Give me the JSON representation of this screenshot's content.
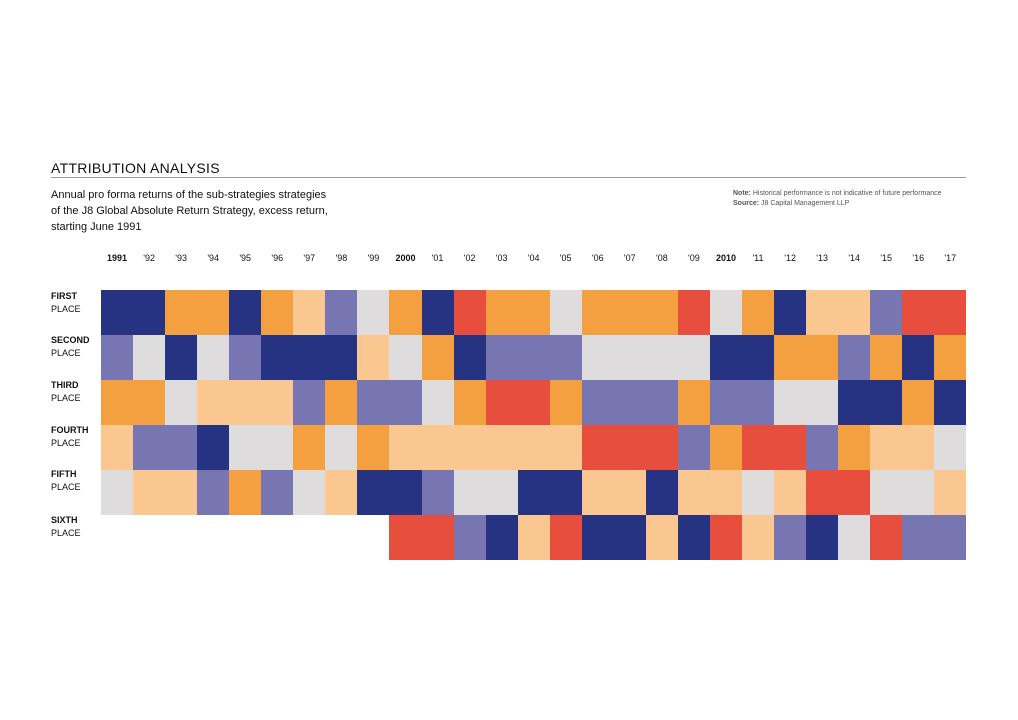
{
  "header": {
    "title": "ATTRIBUTION ANALYSIS",
    "subtitle_lines": [
      "Annual pro forma returns of the sub-strategies strategies",
      "of the J8 Global Absolute Return Strategy, excess return,",
      "starting June 1991"
    ],
    "note_label": "Note:",
    "note_text": "Historical performance is not indicative of future performance",
    "source_label": "Source:",
    "source_text": "J8 Capital Management LLP"
  },
  "chart_data": {
    "type": "heatmap",
    "title": "ATTRIBUTION ANALYSIS",
    "x_tick_labels": [
      "1991",
      "'92",
      "'93",
      "'94",
      "'95",
      "'96",
      "'97",
      "'98",
      "'99",
      "2000",
      "'01",
      "'02",
      "'03",
      "'04",
      "'05",
      "'06",
      "'07",
      "'08",
      "'09",
      "2010",
      "'11",
      "'12",
      "'13",
      "'14",
      "'15",
      "'16",
      "'17"
    ],
    "bold_ticks": [
      "1991",
      "2000",
      "2010"
    ],
    "rows": [
      {
        "label_1": "FIRST",
        "label_2": "PLACE"
      },
      {
        "label_1": "SECOND",
        "label_2": "PLACE"
      },
      {
        "label_1": "THIRD",
        "label_2": "PLACE"
      },
      {
        "label_1": "FOURTH",
        "label_2": "PLACE"
      },
      {
        "label_1": "FIFTH",
        "label_2": "PLACE"
      },
      {
        "label_1": "SIXTH",
        "label_2": "PLACE"
      }
    ],
    "strategy_colors": {
      "A": "#263282",
      "B": "#f5a040",
      "C": "#fac791",
      "D": "#7776b2",
      "E": "#dfdcde",
      "F": "#e84e3e"
    },
    "cells": [
      [
        "A",
        "A",
        "B",
        "B",
        "A",
        "B",
        "C",
        "D",
        "E",
        "B",
        "A",
        "F",
        "B",
        "B",
        "E",
        "B",
        "B",
        "B",
        "F",
        "E",
        "B",
        "A",
        "C",
        "C",
        "D",
        "F",
        "F"
      ],
      [
        "D",
        "E",
        "A",
        "E",
        "D",
        "A",
        "A",
        "A",
        "C",
        "E",
        "B",
        "A",
        "D",
        "D",
        "D",
        "E",
        "E",
        "E",
        "E",
        "A",
        "A",
        "B",
        "B",
        "D",
        "B",
        "A",
        "B"
      ],
      [
        "B",
        "B",
        "E",
        "C",
        "C",
        "C",
        "D",
        "B",
        "D",
        "D",
        "E",
        "B",
        "F",
        "F",
        "B",
        "D",
        "D",
        "D",
        "B",
        "D",
        "D",
        "E",
        "E",
        "A",
        "A",
        "B",
        "A"
      ],
      [
        "C",
        "D",
        "D",
        "A",
        "E",
        "E",
        "B",
        "E",
        "B",
        "C",
        "C",
        "C",
        "C",
        "C",
        "C",
        "F",
        "F",
        "F",
        "D",
        "B",
        "F",
        "F",
        "D",
        "B",
        "C",
        "C",
        "E"
      ],
      [
        "E",
        "C",
        "C",
        "D",
        "B",
        "D",
        "E",
        "C",
        "A",
        "A",
        "D",
        "E",
        "E",
        "A",
        "A",
        "C",
        "C",
        "A",
        "C",
        "C",
        "E",
        "C",
        "F",
        "F",
        "E",
        "E",
        "C"
      ],
      [
        null,
        null,
        null,
        null,
        null,
        null,
        null,
        null,
        null,
        "F",
        "F",
        "D",
        "A",
        "C",
        "F",
        "A",
        "A",
        "C",
        "A",
        "F",
        "C",
        "D",
        "A",
        "E",
        "F",
        "D",
        "D"
      ]
    ]
  }
}
